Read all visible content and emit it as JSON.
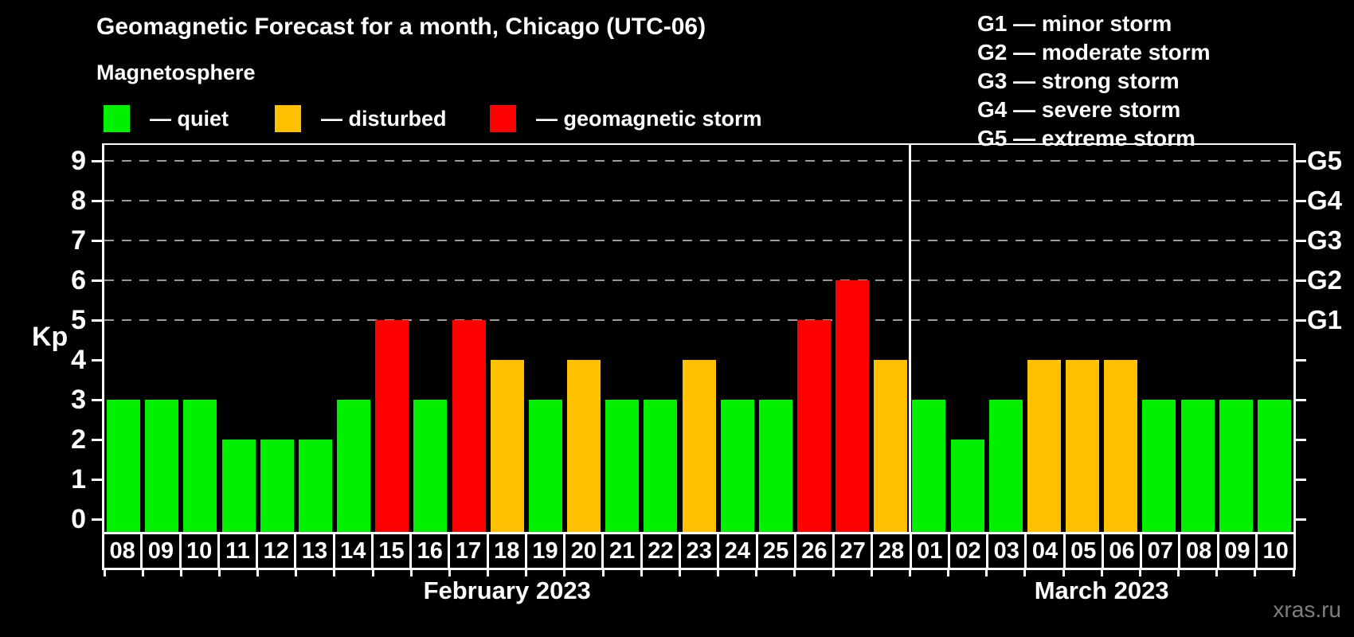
{
  "title": "Geomagnetic Forecast for a month, Chicago (UTC-06)",
  "subtitle": "Magnetosphere",
  "watermark": "xras.ru",
  "magnetosphere_legend": [
    {
      "label": "— quiet",
      "color": "#00f000",
      "state": "quiet"
    },
    {
      "label": "— disturbed",
      "color": "#ffc000",
      "state": "disturbed"
    },
    {
      "label": "— geomagnetic storm",
      "color": "#ff0000",
      "state": "storm"
    }
  ],
  "g_scale_legend": [
    "G1 — minor storm",
    "G2 — moderate storm",
    "G3 — strong storm",
    "G4 — severe storm",
    "G5 — extreme storm"
  ],
  "chart_data": {
    "type": "bar",
    "title": "Geomagnetic Forecast for a month, Chicago (UTC-06)",
    "ylabel": "Kp",
    "ylim": [
      0,
      9
    ],
    "yticks": [
      0,
      1,
      2,
      3,
      4,
      5,
      6,
      7,
      8,
      9
    ],
    "grid_values": [
      5,
      6,
      7,
      8,
      9
    ],
    "grid_style": "dashed",
    "legend_position": "top",
    "colors": {
      "quiet": "#00f000",
      "disturbed": "#ffc000",
      "storm": "#ff0000"
    },
    "right_axis": [
      {
        "value": 5,
        "label": "G1"
      },
      {
        "value": 6,
        "label": "G2"
      },
      {
        "value": 7,
        "label": "G3"
      },
      {
        "value": 8,
        "label": "G4"
      },
      {
        "value": 9,
        "label": "G5"
      }
    ],
    "months": [
      {
        "label": "February 2023",
        "days": 21
      },
      {
        "label": "March 2023",
        "days": 10
      }
    ],
    "bars": [
      {
        "day": "08",
        "kp": 3,
        "state": "quiet"
      },
      {
        "day": "09",
        "kp": 3,
        "state": "quiet"
      },
      {
        "day": "10",
        "kp": 3,
        "state": "quiet"
      },
      {
        "day": "11",
        "kp": 2,
        "state": "quiet"
      },
      {
        "day": "12",
        "kp": 2,
        "state": "quiet"
      },
      {
        "day": "13",
        "kp": 2,
        "state": "quiet"
      },
      {
        "day": "14",
        "kp": 3,
        "state": "quiet"
      },
      {
        "day": "15",
        "kp": 5,
        "state": "storm"
      },
      {
        "day": "16",
        "kp": 3,
        "state": "quiet"
      },
      {
        "day": "17",
        "kp": 5,
        "state": "storm"
      },
      {
        "day": "18",
        "kp": 4,
        "state": "disturbed"
      },
      {
        "day": "19",
        "kp": 3,
        "state": "quiet"
      },
      {
        "day": "20",
        "kp": 4,
        "state": "disturbed"
      },
      {
        "day": "21",
        "kp": 3,
        "state": "quiet"
      },
      {
        "day": "22",
        "kp": 3,
        "state": "quiet"
      },
      {
        "day": "23",
        "kp": 4,
        "state": "disturbed"
      },
      {
        "day": "24",
        "kp": 3,
        "state": "quiet"
      },
      {
        "day": "25",
        "kp": 3,
        "state": "quiet"
      },
      {
        "day": "26",
        "kp": 5,
        "state": "storm"
      },
      {
        "day": "27",
        "kp": 6,
        "state": "storm"
      },
      {
        "day": "28",
        "kp": 4,
        "state": "disturbed"
      },
      {
        "day": "01",
        "kp": 3,
        "state": "quiet"
      },
      {
        "day": "02",
        "kp": 2,
        "state": "quiet"
      },
      {
        "day": "03",
        "kp": 3,
        "state": "quiet"
      },
      {
        "day": "04",
        "kp": 4,
        "state": "disturbed"
      },
      {
        "day": "05",
        "kp": 4,
        "state": "disturbed"
      },
      {
        "day": "06",
        "kp": 4,
        "state": "disturbed"
      },
      {
        "day": "07",
        "kp": 3,
        "state": "quiet"
      },
      {
        "day": "08",
        "kp": 3,
        "state": "quiet"
      },
      {
        "day": "09",
        "kp": 3,
        "state": "quiet"
      },
      {
        "day": "10",
        "kp": 3,
        "state": "quiet"
      }
    ]
  }
}
